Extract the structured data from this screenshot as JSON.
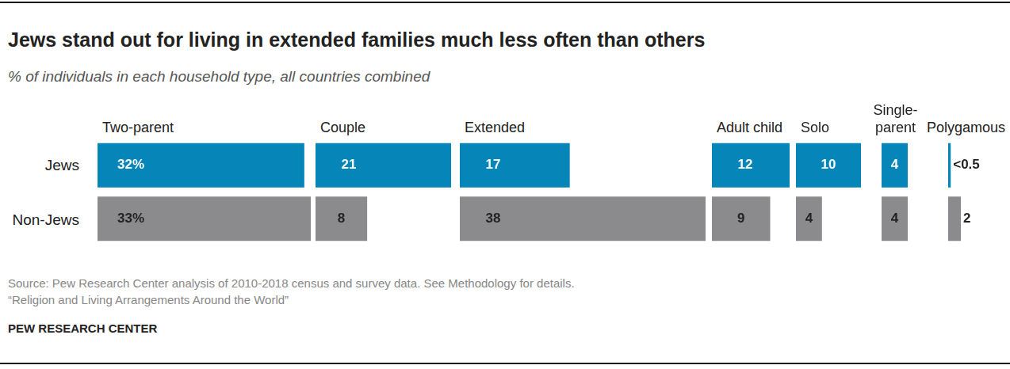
{
  "chart_data": {
    "type": "bar",
    "title": "Jews stand out for living in extended families much less often than others",
    "subtitle": "% of individuals in each household type, all countries combined",
    "orientation": "horizontal",
    "categories": [
      "Two-parent",
      "Couple",
      "Extended",
      "Adult child",
      "Solo",
      "Single-parent",
      "Polygamous"
    ],
    "series": [
      {
        "name": "Jews",
        "color": "#0685b9",
        "values": [
          32,
          21,
          17,
          12,
          10,
          4,
          0.4
        ],
        "value_labels": [
          "32%",
          "21",
          "17",
          "12",
          "10",
          "4",
          "<0.5"
        ]
      },
      {
        "name": "Non-Jews",
        "color": "#8b8b8d",
        "values": [
          33,
          8,
          38,
          9,
          4,
          4,
          2
        ],
        "value_labels": [
          "33%",
          "8",
          "38",
          "9",
          "4",
          "4",
          "2"
        ]
      }
    ],
    "data_labels": true,
    "tick_labels": false,
    "grid": false
  },
  "source": [
    "Source: Pew Research Center analysis of 2010-2018 census and survey data. See Methodology for details.",
    "“Religion and Living Arrangements Around the World”"
  ],
  "credit": "PEW RESEARCH CENTER"
}
